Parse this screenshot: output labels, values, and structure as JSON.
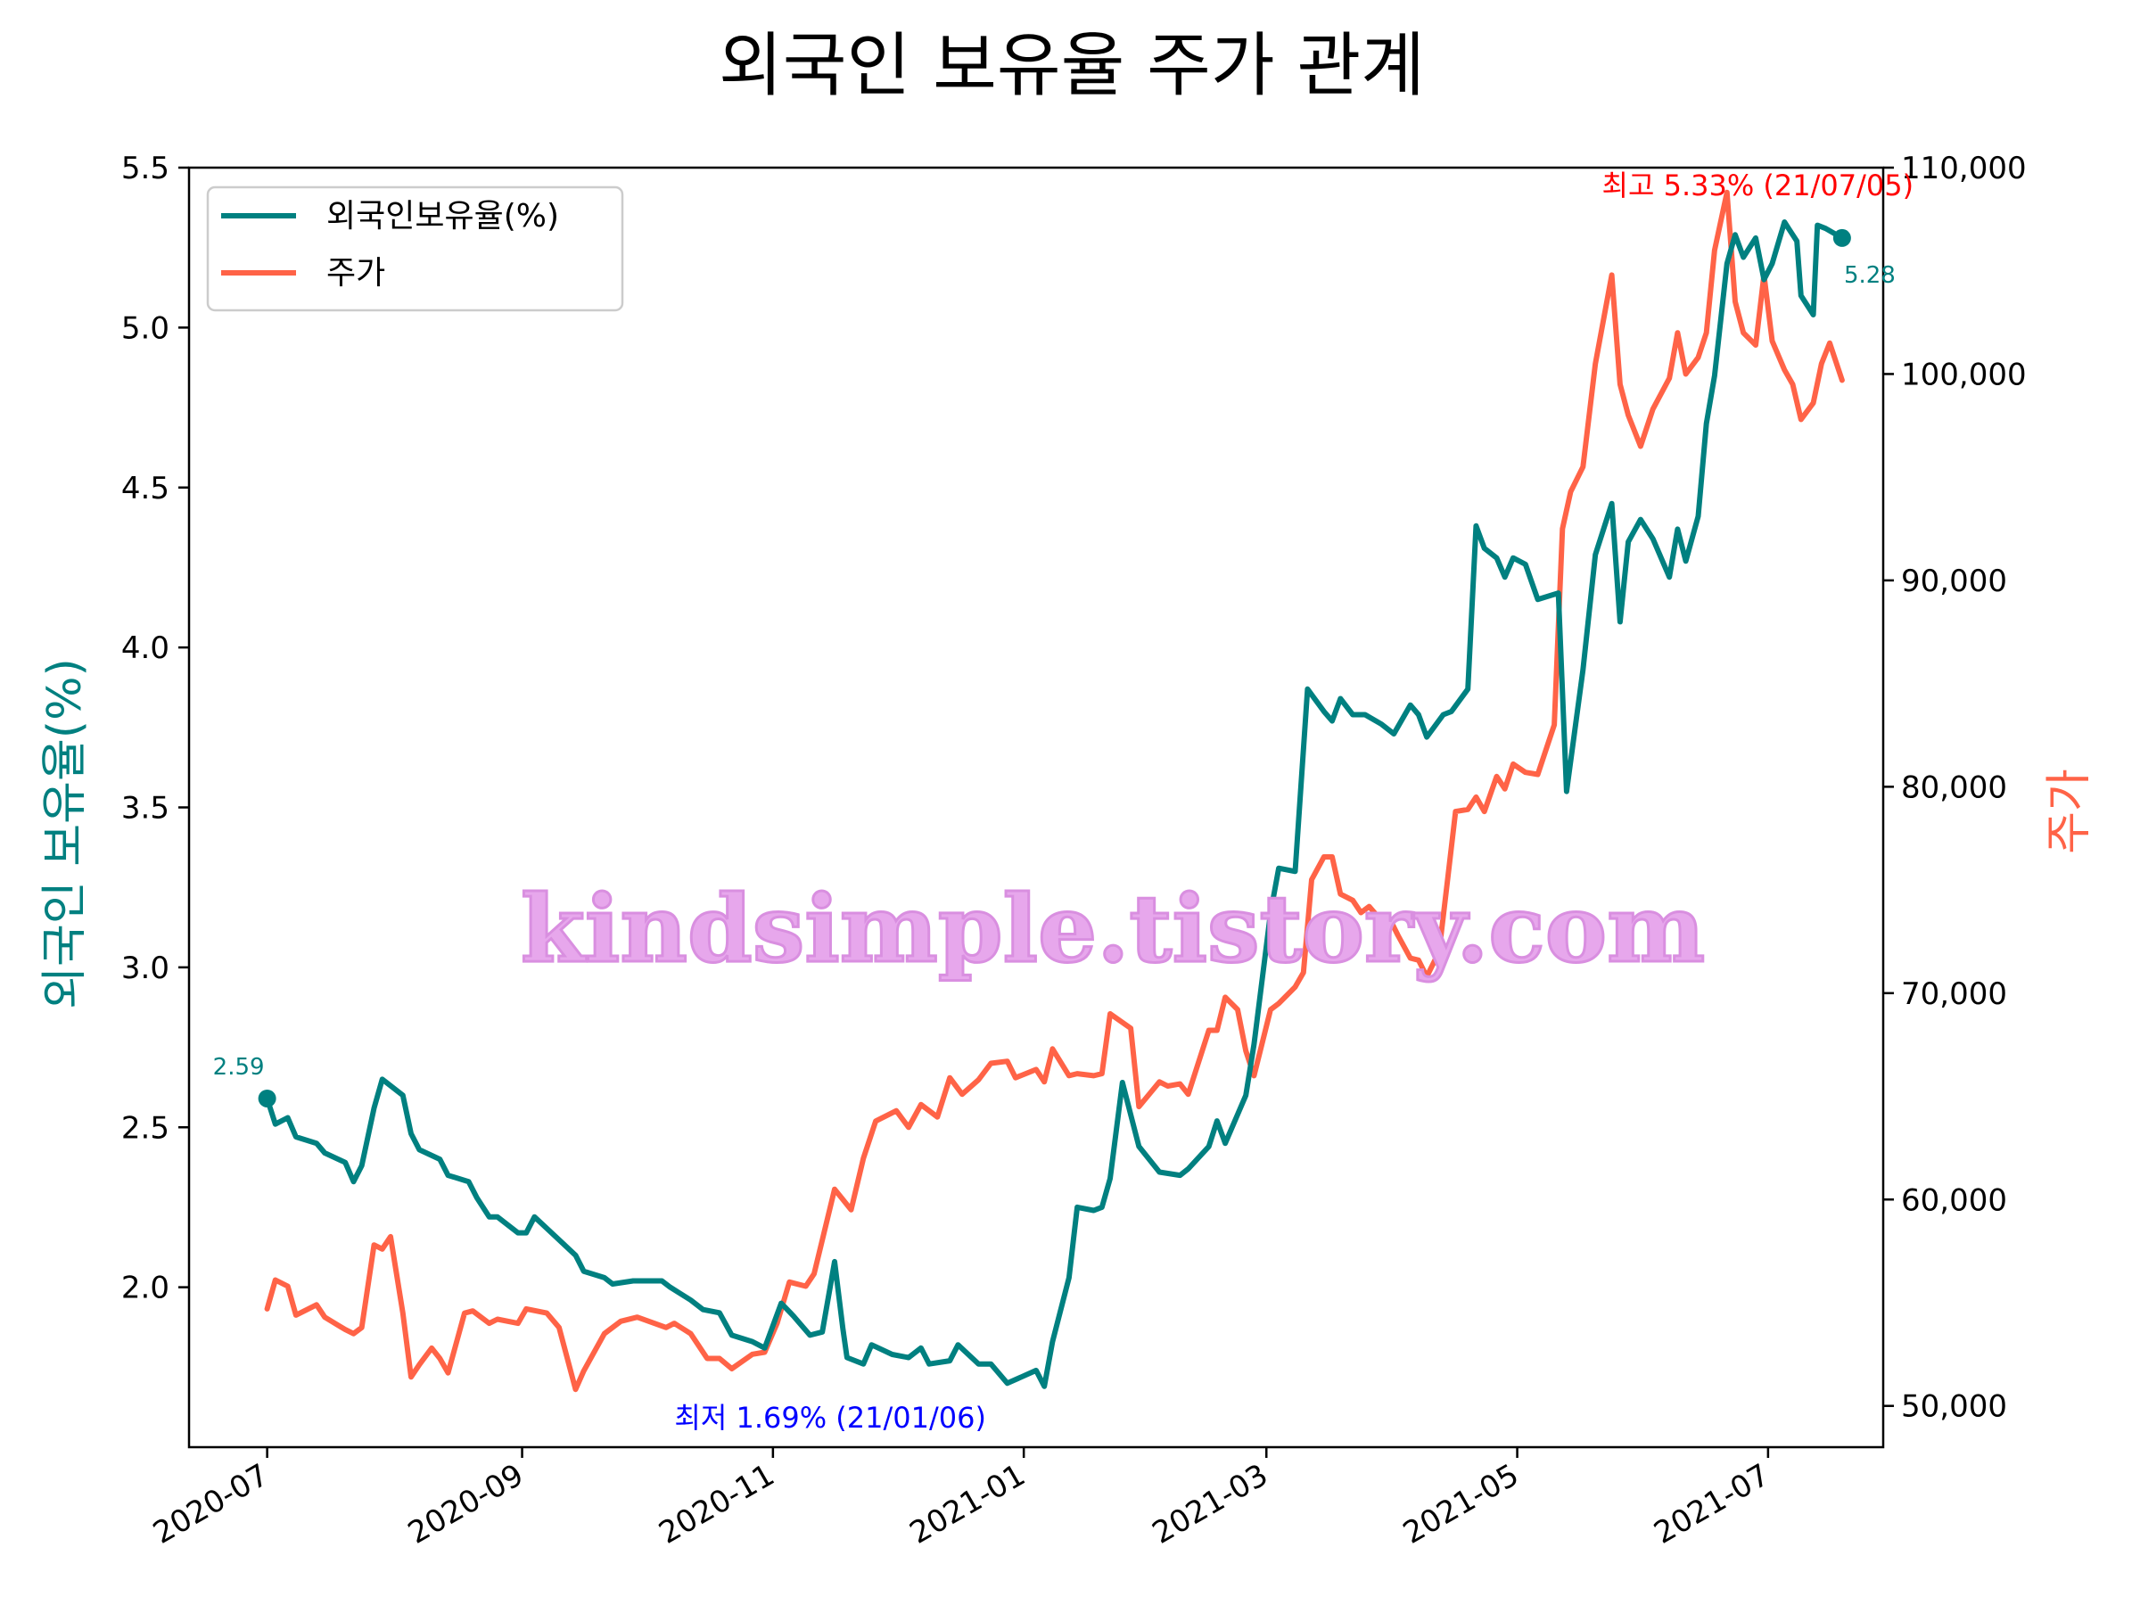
{
  "chart_data": {
    "type": "line",
    "title": "외국인 보유율 주가 관계",
    "ylabel_left": "외국인 보유율(%)",
    "ylabel_right": "주가",
    "left_axis": {
      "ylim": [
        1.5,
        5.5
      ],
      "ticks": [
        2.0,
        2.5,
        3.0,
        3.5,
        4.0,
        4.5,
        5.0,
        5.5
      ]
    },
    "right_axis": {
      "ylim": [
        48000,
        110000
      ],
      "ticks": [
        50000,
        60000,
        70000,
        80000,
        90000,
        100000,
        110000
      ]
    },
    "xlim": [
      "2020-06-12",
      "2021-07-29"
    ],
    "x_ticks": [
      "2020-07",
      "2020-09",
      "2020-11",
      "2021-01",
      "2021-03",
      "2021-05",
      "2021-07"
    ],
    "grid": false,
    "legend_position": "upper-left",
    "colors": {
      "foreign": "#008080",
      "price": "#ff6347",
      "max_annotation": "#ff0000",
      "min_annotation": "#0000ff"
    },
    "series": [
      {
        "name": "외국인보유율(%)",
        "axis": "left",
        "points": [
          [
            "2020-07-01",
            2.59
          ],
          [
            "2020-07-03",
            2.51
          ],
          [
            "2020-07-06",
            2.53
          ],
          [
            "2020-07-08",
            2.47
          ],
          [
            "2020-07-13",
            2.45
          ],
          [
            "2020-07-15",
            2.42
          ],
          [
            "2020-07-20",
            2.39
          ],
          [
            "2020-07-22",
            2.33
          ],
          [
            "2020-07-24",
            2.38
          ],
          [
            "2020-07-27",
            2.56
          ],
          [
            "2020-07-29",
            2.65
          ],
          [
            "2020-08-03",
            2.6
          ],
          [
            "2020-08-05",
            2.48
          ],
          [
            "2020-08-07",
            2.43
          ],
          [
            "2020-08-12",
            2.4
          ],
          [
            "2020-08-14",
            2.35
          ],
          [
            "2020-08-19",
            2.33
          ],
          [
            "2020-08-21",
            2.28
          ],
          [
            "2020-08-24",
            2.22
          ],
          [
            "2020-08-26",
            2.22
          ],
          [
            "2020-08-31",
            2.17
          ],
          [
            "2020-09-02",
            2.17
          ],
          [
            "2020-09-04",
            2.22
          ],
          [
            "2020-09-09",
            2.16
          ],
          [
            "2020-09-14",
            2.1
          ],
          [
            "2020-09-16",
            2.05
          ],
          [
            "2020-09-21",
            2.03
          ],
          [
            "2020-09-23",
            2.01
          ],
          [
            "2020-09-28",
            2.02
          ],
          [
            "2020-10-05",
            2.02
          ],
          [
            "2020-10-07",
            2.0
          ],
          [
            "2020-10-12",
            1.96
          ],
          [
            "2020-10-15",
            1.93
          ],
          [
            "2020-10-19",
            1.92
          ],
          [
            "2020-10-22",
            1.85
          ],
          [
            "2020-10-27",
            1.83
          ],
          [
            "2020-10-30",
            1.81
          ],
          [
            "2020-11-03",
            1.95
          ],
          [
            "2020-11-06",
            1.91
          ],
          [
            "2020-11-10",
            1.85
          ],
          [
            "2020-11-13",
            1.86
          ],
          [
            "2020-11-16",
            2.08
          ],
          [
            "2020-11-18",
            1.87
          ],
          [
            "2020-11-19",
            1.78
          ],
          [
            "2020-11-23",
            1.76
          ],
          [
            "2020-11-25",
            1.82
          ],
          [
            "2020-11-30",
            1.79
          ],
          [
            "2020-12-04",
            1.78
          ],
          [
            "2020-12-07",
            1.81
          ],
          [
            "2020-12-09",
            1.76
          ],
          [
            "2020-12-14",
            1.77
          ],
          [
            "2020-12-16",
            1.82
          ],
          [
            "2020-12-21",
            1.76
          ],
          [
            "2020-12-24",
            1.76
          ],
          [
            "2020-12-28",
            1.7
          ],
          [
            "2021-01-04",
            1.74
          ],
          [
            "2021-01-06",
            1.69
          ],
          [
            "2021-01-08",
            1.83
          ],
          [
            "2021-01-12",
            2.03
          ],
          [
            "2021-01-14",
            2.25
          ],
          [
            "2021-01-18",
            2.24
          ],
          [
            "2021-01-20",
            2.25
          ],
          [
            "2021-01-22",
            2.34
          ],
          [
            "2021-01-25",
            2.64
          ],
          [
            "2021-01-29",
            2.44
          ],
          [
            "2021-02-03",
            2.36
          ],
          [
            "2021-02-08",
            2.35
          ],
          [
            "2021-02-10",
            2.37
          ],
          [
            "2021-02-15",
            2.44
          ],
          [
            "2021-02-17",
            2.52
          ],
          [
            "2021-02-19",
            2.45
          ],
          [
            "2021-02-24",
            2.6
          ],
          [
            "2021-02-26",
            2.76
          ],
          [
            "2021-03-02",
            3.17
          ],
          [
            "2021-03-04",
            3.31
          ],
          [
            "2021-03-08",
            3.3
          ],
          [
            "2021-03-11",
            3.87
          ],
          [
            "2021-03-15",
            3.8
          ],
          [
            "2021-03-17",
            3.77
          ],
          [
            "2021-03-19",
            3.84
          ],
          [
            "2021-03-22",
            3.79
          ],
          [
            "2021-03-25",
            3.79
          ],
          [
            "2021-03-29",
            3.76
          ],
          [
            "2021-04-01",
            3.73
          ],
          [
            "2021-04-05",
            3.82
          ],
          [
            "2021-04-07",
            3.79
          ],
          [
            "2021-04-09",
            3.72
          ],
          [
            "2021-04-13",
            3.79
          ],
          [
            "2021-04-15",
            3.8
          ],
          [
            "2021-04-19",
            3.87
          ],
          [
            "2021-04-21",
            4.38
          ],
          [
            "2021-04-23",
            4.31
          ],
          [
            "2021-04-26",
            4.28
          ],
          [
            "2021-04-28",
            4.22
          ],
          [
            "2021-04-30",
            4.28
          ],
          [
            "2021-05-03",
            4.26
          ],
          [
            "2021-05-06",
            4.15
          ],
          [
            "2021-05-11",
            4.17
          ],
          [
            "2021-05-13",
            3.55
          ],
          [
            "2021-05-17",
            3.93
          ],
          [
            "2021-05-20",
            4.29
          ],
          [
            "2021-05-24",
            4.45
          ],
          [
            "2021-05-26",
            4.08
          ],
          [
            "2021-05-28",
            4.33
          ],
          [
            "2021-05-31",
            4.4
          ],
          [
            "2021-06-03",
            4.34
          ],
          [
            "2021-06-07",
            4.22
          ],
          [
            "2021-06-09",
            4.37
          ],
          [
            "2021-06-11",
            4.27
          ],
          [
            "2021-06-14",
            4.41
          ],
          [
            "2021-06-16",
            4.7
          ],
          [
            "2021-06-18",
            4.85
          ],
          [
            "2021-06-21",
            5.2
          ],
          [
            "2021-06-23",
            5.29
          ],
          [
            "2021-06-25",
            5.22
          ],
          [
            "2021-06-28",
            5.28
          ],
          [
            "2021-06-30",
            5.15
          ],
          [
            "2021-07-02",
            5.2
          ],
          [
            "2021-07-05",
            5.33
          ],
          [
            "2021-07-06",
            5.31
          ],
          [
            "2021-07-08",
            5.27
          ],
          [
            "2021-07-09",
            5.1
          ],
          [
            "2021-07-12",
            5.04
          ],
          [
            "2021-07-13",
            5.32
          ],
          [
            "2021-07-15",
            5.31
          ],
          [
            "2021-07-19",
            5.28
          ]
        ]
      },
      {
        "name": "주가",
        "axis": "right",
        "points": [
          [
            "2020-07-01",
            54700
          ],
          [
            "2020-07-03",
            56100
          ],
          [
            "2020-07-06",
            55800
          ],
          [
            "2020-07-08",
            54400
          ],
          [
            "2020-07-13",
            54900
          ],
          [
            "2020-07-15",
            54300
          ],
          [
            "2020-07-20",
            53700
          ],
          [
            "2020-07-22",
            53500
          ],
          [
            "2020-07-24",
            53800
          ],
          [
            "2020-07-27",
            57800
          ],
          [
            "2020-07-29",
            57600
          ],
          [
            "2020-07-31",
            58200
          ],
          [
            "2020-08-03",
            54500
          ],
          [
            "2020-08-05",
            51400
          ],
          [
            "2020-08-07",
            52000
          ],
          [
            "2020-08-10",
            52800
          ],
          [
            "2020-08-12",
            52300
          ],
          [
            "2020-08-14",
            51600
          ],
          [
            "2020-08-18",
            54500
          ],
          [
            "2020-08-20",
            54600
          ],
          [
            "2020-08-24",
            54000
          ],
          [
            "2020-08-26",
            54200
          ],
          [
            "2020-08-31",
            54000
          ],
          [
            "2020-09-02",
            54700
          ],
          [
            "2020-09-07",
            54500
          ],
          [
            "2020-09-10",
            53800
          ],
          [
            "2020-09-14",
            50800
          ],
          [
            "2020-09-16",
            51700
          ],
          [
            "2020-09-21",
            53500
          ],
          [
            "2020-09-25",
            54100
          ],
          [
            "2020-09-29",
            54300
          ],
          [
            "2020-10-06",
            53800
          ],
          [
            "2020-10-08",
            54000
          ],
          [
            "2020-10-12",
            53500
          ],
          [
            "2020-10-16",
            52300
          ],
          [
            "2020-10-19",
            52300
          ],
          [
            "2020-10-22",
            51800
          ],
          [
            "2020-10-27",
            52500
          ],
          [
            "2020-10-30",
            52600
          ],
          [
            "2020-11-02",
            54000
          ],
          [
            "2020-11-05",
            56000
          ],
          [
            "2020-11-09",
            55800
          ],
          [
            "2020-11-11",
            56400
          ],
          [
            "2020-11-16",
            60500
          ],
          [
            "2020-11-18",
            60000
          ],
          [
            "2020-11-20",
            59500
          ],
          [
            "2020-11-23",
            62000
          ],
          [
            "2020-11-26",
            63800
          ],
          [
            "2020-12-01",
            64300
          ],
          [
            "2020-12-04",
            63500
          ],
          [
            "2020-12-07",
            64600
          ],
          [
            "2020-12-11",
            64000
          ],
          [
            "2020-12-14",
            65900
          ],
          [
            "2020-12-17",
            65100
          ],
          [
            "2020-12-21",
            65800
          ],
          [
            "2020-12-24",
            66600
          ],
          [
            "2020-12-28",
            66700
          ],
          [
            "2020-12-30",
            65900
          ],
          [
            "2021-01-04",
            66300
          ],
          [
            "2021-01-06",
            65700
          ],
          [
            "2021-01-08",
            67300
          ],
          [
            "2021-01-12",
            66000
          ],
          [
            "2021-01-14",
            66100
          ],
          [
            "2021-01-18",
            66000
          ],
          [
            "2021-01-20",
            66100
          ],
          [
            "2021-01-22",
            69000
          ],
          [
            "2021-01-27",
            68300
          ],
          [
            "2021-01-29",
            64500
          ],
          [
            "2021-02-03",
            65700
          ],
          [
            "2021-02-05",
            65500
          ],
          [
            "2021-02-08",
            65600
          ],
          [
            "2021-02-10",
            65100
          ],
          [
            "2021-02-15",
            68200
          ],
          [
            "2021-02-17",
            68200
          ],
          [
            "2021-02-19",
            69800
          ],
          [
            "2021-02-22",
            69200
          ],
          [
            "2021-02-24",
            67200
          ],
          [
            "2021-02-26",
            66000
          ],
          [
            "2021-03-02",
            69200
          ],
          [
            "2021-03-04",
            69500
          ],
          [
            "2021-03-08",
            70300
          ],
          [
            "2021-03-10",
            71000
          ],
          [
            "2021-03-12",
            75500
          ],
          [
            "2021-03-15",
            76600
          ],
          [
            "2021-03-17",
            76600
          ],
          [
            "2021-03-19",
            74800
          ],
          [
            "2021-03-22",
            74500
          ],
          [
            "2021-03-24",
            73900
          ],
          [
            "2021-03-26",
            74200
          ],
          [
            "2021-03-29",
            73500
          ],
          [
            "2021-03-31",
            73600
          ],
          [
            "2021-04-02",
            72800
          ],
          [
            "2021-04-05",
            71700
          ],
          [
            "2021-04-07",
            71600
          ],
          [
            "2021-04-09",
            70800
          ],
          [
            "2021-04-12",
            72000
          ],
          [
            "2021-04-14",
            75400
          ],
          [
            "2021-04-16",
            78800
          ],
          [
            "2021-04-19",
            78900
          ],
          [
            "2021-04-21",
            79500
          ],
          [
            "2021-04-23",
            78800
          ],
          [
            "2021-04-26",
            80500
          ],
          [
            "2021-04-28",
            79900
          ],
          [
            "2021-04-30",
            81100
          ],
          [
            "2021-05-03",
            80700
          ],
          [
            "2021-05-06",
            80600
          ],
          [
            "2021-05-10",
            83000
          ],
          [
            "2021-05-12",
            92500
          ],
          [
            "2021-05-14",
            94300
          ],
          [
            "2021-05-17",
            95500
          ],
          [
            "2021-05-20",
            100500
          ],
          [
            "2021-05-24",
            104800
          ],
          [
            "2021-05-26",
            99500
          ],
          [
            "2021-05-28",
            98000
          ],
          [
            "2021-05-31",
            96500
          ],
          [
            "2021-06-03",
            98300
          ],
          [
            "2021-06-07",
            99800
          ],
          [
            "2021-06-09",
            102000
          ],
          [
            "2021-06-11",
            100000
          ],
          [
            "2021-06-14",
            100800
          ],
          [
            "2021-06-16",
            102000
          ],
          [
            "2021-06-18",
            106000
          ],
          [
            "2021-06-21",
            108800
          ],
          [
            "2021-06-23",
            103500
          ],
          [
            "2021-06-25",
            102000
          ],
          [
            "2021-06-28",
            101400
          ],
          [
            "2021-06-30",
            104800
          ],
          [
            "2021-07-02",
            101600
          ],
          [
            "2021-07-05",
            100200
          ],
          [
            "2021-07-07",
            99500
          ],
          [
            "2021-07-09",
            97800
          ],
          [
            "2021-07-12",
            98600
          ],
          [
            "2021-07-14",
            100500
          ],
          [
            "2021-07-16",
            101500
          ],
          [
            "2021-07-19",
            99700
          ]
        ]
      }
    ],
    "annotations": {
      "max": {
        "date": "2021-07-05",
        "value": 5.33,
        "text": "최고 5.33% (21/07/05)"
      },
      "min": {
        "date": "2021-01-06",
        "value": 1.69,
        "text": "최저 1.69% (21/01/06)"
      },
      "start": {
        "date": "2020-07-01",
        "value": 2.59,
        "text": "2.59"
      },
      "end": {
        "date": "2021-07-19",
        "value": 5.28,
        "text": "5.28"
      }
    },
    "watermark": "kindsimple.tistory.com"
  }
}
